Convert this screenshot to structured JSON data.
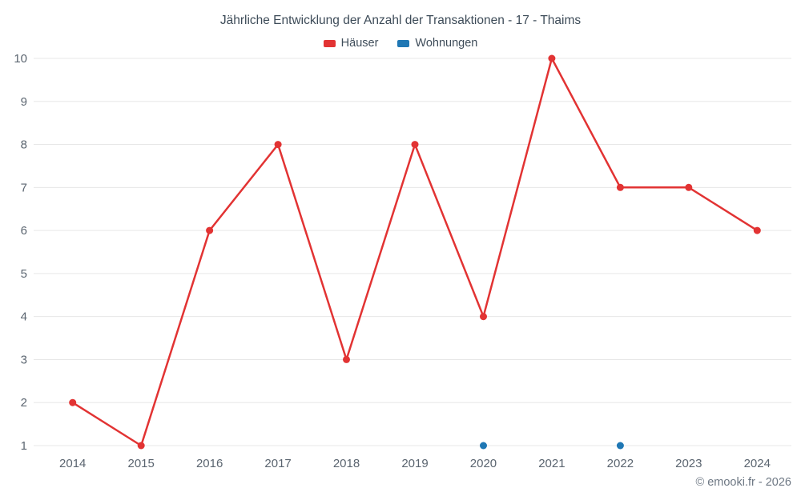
{
  "footer": {
    "credit": "© emooki.fr - 2026"
  },
  "chart_data": {
    "type": "line",
    "title": "Jährliche Entwicklung der Anzahl der Transaktionen - 17 - Thaims",
    "xlabel": "",
    "ylabel": "",
    "x": [
      2014,
      2015,
      2016,
      2017,
      2018,
      2019,
      2020,
      2021,
      2022,
      2023,
      2024
    ],
    "series": [
      {
        "name": "Häuser",
        "color": "#e23333",
        "draw_line": true,
        "values": [
          2,
          1,
          6,
          8,
          3,
          8,
          4,
          10,
          7,
          7,
          6
        ]
      },
      {
        "name": "Wohnungen",
        "color": "#1f77b4",
        "draw_line": false,
        "values": [
          null,
          null,
          null,
          null,
          null,
          null,
          1,
          null,
          1,
          null,
          null
        ]
      }
    ],
    "ylim": [
      1,
      10
    ],
    "yticks": [
      1,
      2,
      3,
      4,
      5,
      6,
      7,
      8,
      9,
      10
    ],
    "grid": "horizontal",
    "grid_color": "#e7e7e7",
    "legend_position": "top"
  }
}
